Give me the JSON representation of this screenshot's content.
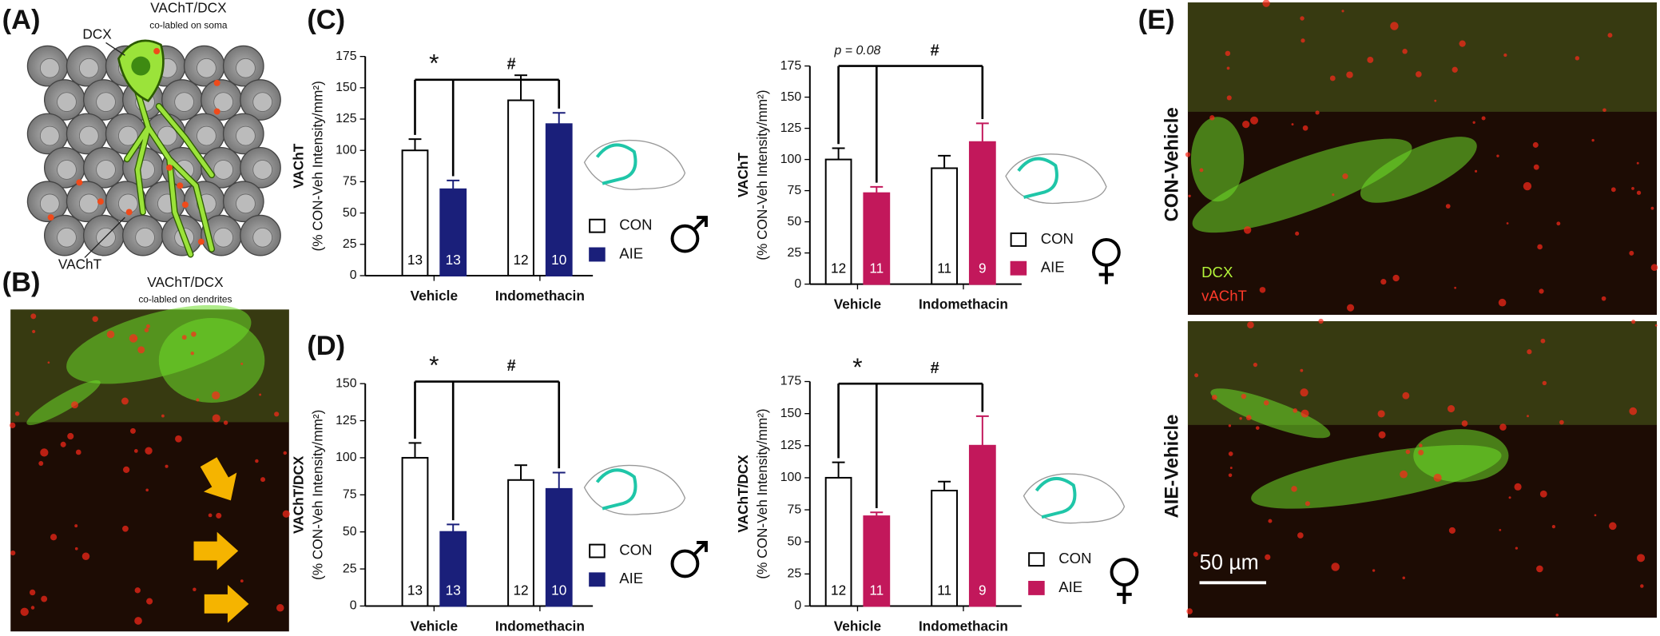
{
  "panels": {
    "A": {
      "label": "(A)",
      "dcx": "DCX",
      "soma_title": "VAChT/DCX",
      "soma_note": "co-labled on soma",
      "vacht": "VAChT",
      "dend_title": "VAChT/DCX",
      "dend_note": "co-labled on dendrites"
    },
    "B": {
      "label": "(B)"
    },
    "C": {
      "label": "(C)"
    },
    "D": {
      "label": "(D)"
    },
    "E": {
      "label": "(E)",
      "row1": "CON-Vehicle",
      "row2": "AIE-Vehicle",
      "stain1": "DCX",
      "stain2": "vAChT",
      "scale": "50 µm"
    }
  },
  "chart_data": [
    {
      "type": "bar",
      "y_title": "VAChT",
      "y_label": "(% CON-Veh Intensity/mm²)",
      "categories": [
        "Vehicle",
        "Indomethacin"
      ],
      "series": [
        {
          "name": "CON",
          "color": "#ffffff",
          "values": [
            100,
            140
          ],
          "errors": [
            9,
            20
          ],
          "n": [
            13,
            12
          ]
        },
        {
          "name": "AIE",
          "color": "#1a1f7a",
          "values": [
            69,
            121
          ],
          "errors": [
            7,
            9
          ],
          "n": [
            13,
            10
          ]
        }
      ],
      "ylim": [
        0,
        175
      ],
      "yticks": [
        0,
        25,
        50,
        75,
        100,
        125,
        150,
        175
      ],
      "annotations": [
        "*",
        "#"
      ],
      "sex": "male"
    },
    {
      "type": "bar",
      "y_title": "VAChT",
      "y_label": "(% CON-Veh Intensity/mm²)",
      "categories": [
        "Vehicle",
        "Indomethacin"
      ],
      "series": [
        {
          "name": "CON",
          "color": "#ffffff",
          "values": [
            100,
            93
          ],
          "errors": [
            9,
            10
          ],
          "n": [
            12,
            11
          ]
        },
        {
          "name": "AIE",
          "color": "#c2185b",
          "values": [
            73,
            114
          ],
          "errors": [
            5,
            15
          ],
          "n": [
            11,
            9
          ]
        }
      ],
      "ylim": [
        0,
        175
      ],
      "yticks": [
        0,
        25,
        50,
        75,
        100,
        125,
        150,
        175
      ],
      "annotations": [
        "p = 0.08",
        "#"
      ],
      "sex": "female"
    },
    {
      "type": "bar",
      "y_title": "VAChT/DCX",
      "y_label": "(% CON-Veh Intensity/mm²)",
      "categories": [
        "Vehicle",
        "Indomethacin"
      ],
      "series": [
        {
          "name": "CON",
          "color": "#ffffff",
          "values": [
            100,
            85
          ],
          "errors": [
            10,
            10
          ],
          "n": [
            13,
            12
          ]
        },
        {
          "name": "AIE",
          "color": "#1a1f7a",
          "values": [
            50,
            79
          ],
          "errors": [
            5,
            11
          ],
          "n": [
            13,
            10
          ]
        }
      ],
      "ylim": [
        0,
        150
      ],
      "yticks": [
        0,
        25,
        50,
        75,
        100,
        125,
        150
      ],
      "annotations": [
        "*",
        "#"
      ],
      "sex": "male"
    },
    {
      "type": "bar",
      "y_title": "VAChT/DCX",
      "y_label": "(% CON-Veh Intensity/mm²)",
      "categories": [
        "Vehicle",
        "Indomethacin"
      ],
      "series": [
        {
          "name": "CON",
          "color": "#ffffff",
          "values": [
            100,
            90
          ],
          "errors": [
            12,
            7
          ],
          "n": [
            12,
            11
          ]
        },
        {
          "name": "AIE",
          "color": "#c2185b",
          "values": [
            70,
            125
          ],
          "errors": [
            3,
            23
          ],
          "n": [
            11,
            9
          ]
        }
      ],
      "ylim": [
        0,
        175
      ],
      "yticks": [
        0,
        25,
        50,
        75,
        100,
        125,
        150,
        175
      ],
      "annotations": [
        "*",
        "#"
      ],
      "sex": "female"
    }
  ]
}
